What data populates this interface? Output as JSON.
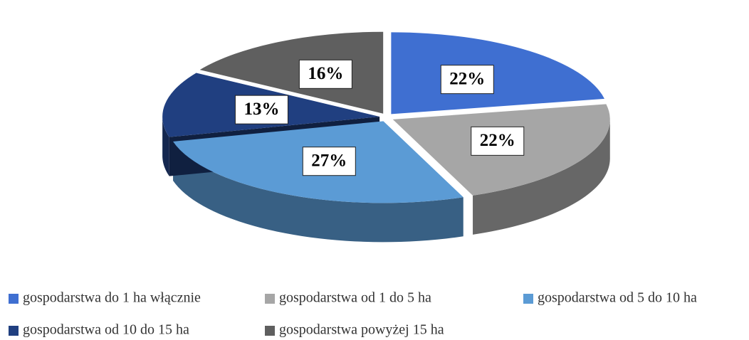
{
  "chart_data": {
    "type": "pie",
    "categories": [
      "gospodarstwa do 1 ha włącznie",
      "gospodarstwa od 1 do 5 ha",
      "gospodarstwa od 5 do 10 ha",
      "gospodarstwa od 10 do 15 ha",
      "gospodarstwa powyżej 15 ha"
    ],
    "values": [
      22,
      22,
      27,
      13,
      16
    ],
    "value_labels": [
      "22%",
      "22%",
      "27%",
      "13%",
      "16%"
    ],
    "colors": [
      "#3f6fd1",
      "#a6a6a6",
      "#5b9bd5",
      "#203f80",
      "#5f5f5f"
    ],
    "legend": "bottom"
  }
}
